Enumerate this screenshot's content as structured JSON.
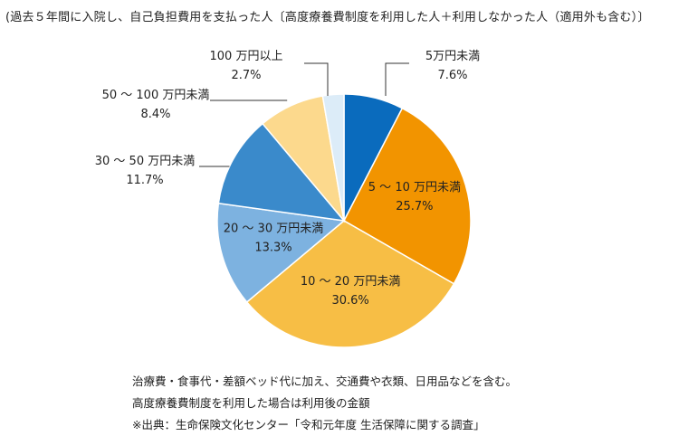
{
  "subtitle": "(過去５年間に入院し、自己負担費用を支払った人〔高度療養費制度を利用した人＋利用しなかった人（適用外も含む）〕",
  "chart_data": {
    "type": "pie",
    "start": "12 o'clock",
    "direction": "clockwise",
    "slices": [
      {
        "label": "5万円未満",
        "value": 7.6,
        "value_label": "7.6%",
        "color": "#0a6bbd",
        "label_place": "outside-right"
      },
      {
        "label": "5 ～ 10 万円未満",
        "value": 25.7,
        "value_label": "25.7%",
        "color": "#f29400",
        "label_place": "inside"
      },
      {
        "label": "10 ～ 20 万円未満",
        "value": 30.6,
        "value_label": "30.6%",
        "color": "#f7be45",
        "label_place": "inside"
      },
      {
        "label": "20 ～ 30 万円未満",
        "value": 13.3,
        "value_label": "13.3%",
        "color": "#7db2e0",
        "label_place": "inside"
      },
      {
        "label": "30 ～ 50 万円未満",
        "value": 11.7,
        "value_label": "11.7%",
        "color": "#3a8acb",
        "label_place": "outside-left"
      },
      {
        "label": "50 ～ 100 万円未満",
        "value": 8.4,
        "value_label": "8.4%",
        "color": "#fcd98d",
        "label_place": "outside-left"
      },
      {
        "label": "100 万円以上",
        "value": 2.7,
        "value_label": "2.7%",
        "color": "#dcecf8",
        "label_place": "outside-top"
      }
    ]
  },
  "notes": [
    "治療費・食事代・差額ベッド代に加え、交通費や衣類、日用品などを含む。",
    "高度療養費制度を利用した場合は利用後の金額",
    "※出典：生命保険文化センター「令和元年度 生活保障に関する調査」"
  ]
}
